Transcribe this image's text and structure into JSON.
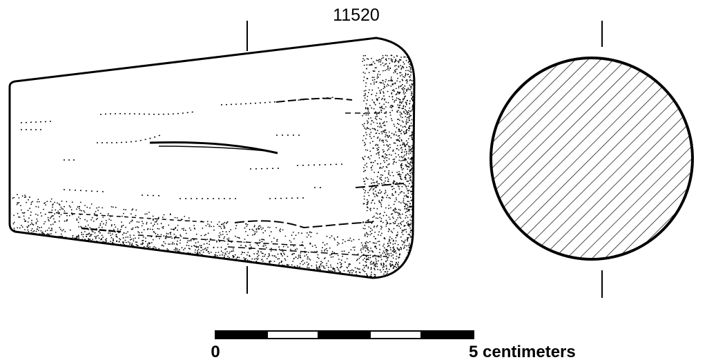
{
  "object_number": "11520",
  "scale_bar": {
    "start_label": "0",
    "end_label": "5 centimeters",
    "segments": 5
  },
  "colors": {
    "ink": "#000000",
    "paper": "#ffffff"
  }
}
